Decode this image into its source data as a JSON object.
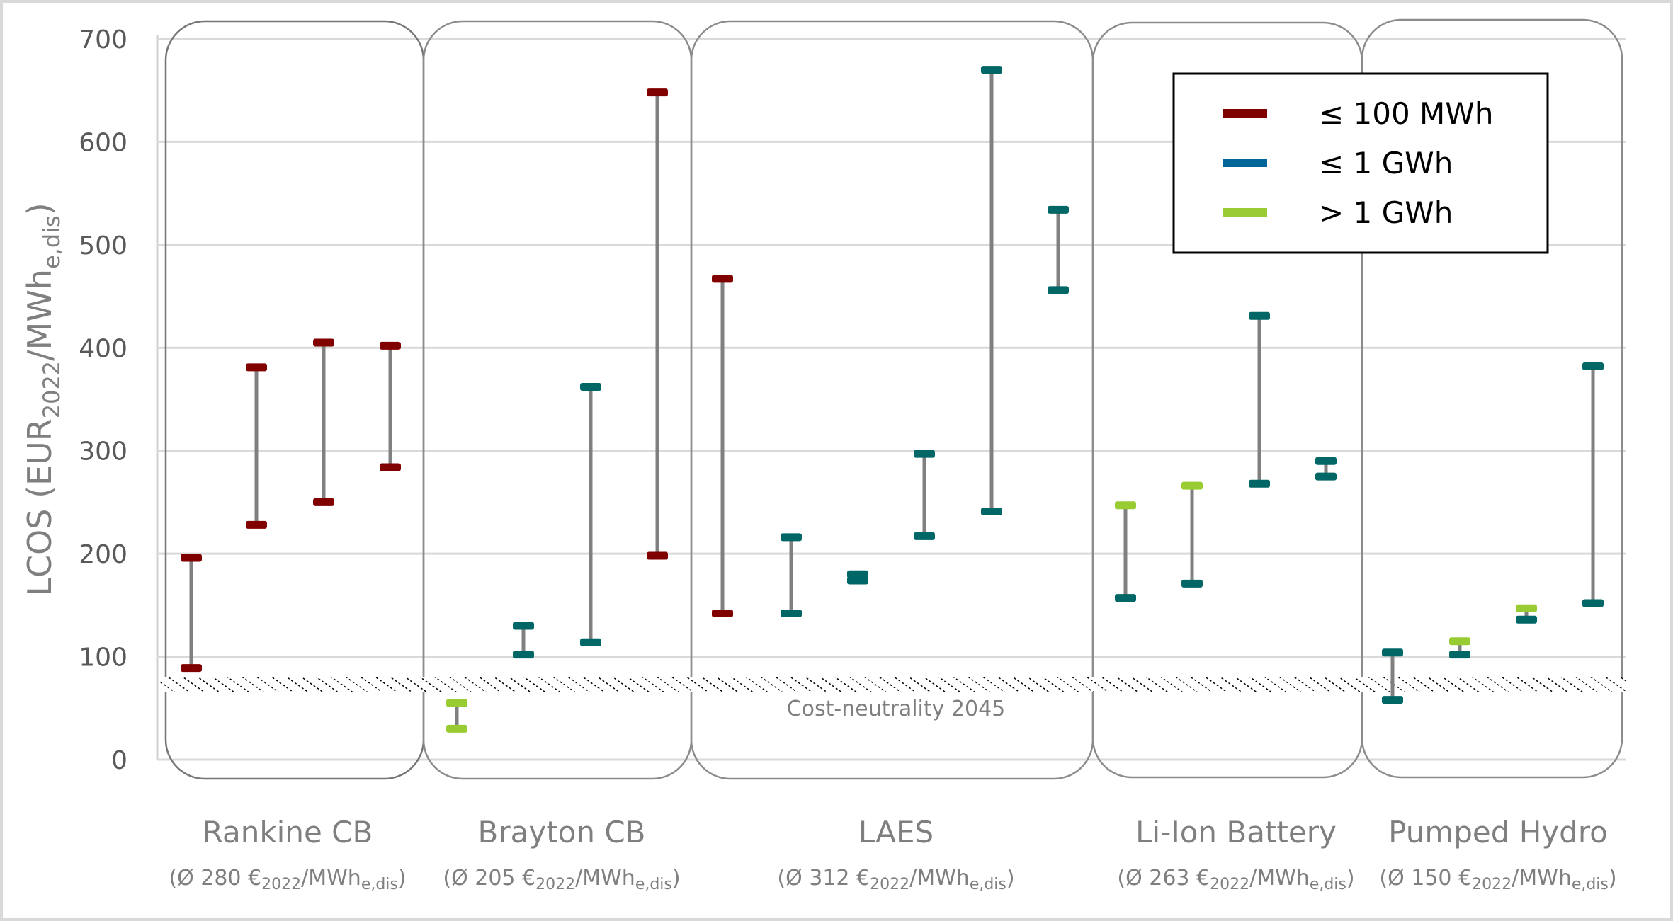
{
  "chart_data": {
    "type": "range",
    "title": "",
    "ylabel": "LCOS (EUR2022/MWhe,dis)",
    "ylabel_parts": {
      "main": "LCOS (EUR",
      "sub1": "2022",
      "mid": "/MWh",
      "sub2": "e,dis",
      "end": ")"
    },
    "ylim": [
      0,
      700
    ],
    "yticks": [
      0,
      100,
      200,
      300,
      400,
      500,
      600,
      700
    ],
    "grid": true,
    "legend_position": "top-right",
    "legend": [
      {
        "key": "small",
        "label": "≤ 100 MWh",
        "color": "#800000"
      },
      {
        "key": "medium",
        "label": "≤ 1 GWh",
        "color": "#006699"
      },
      {
        "key": "large",
        "label": "> 1 GWh",
        "color": "#99CC33"
      }
    ],
    "marker_colors": {
      "small": "#800000",
      "medium": "#006666",
      "large": "#99CC33"
    },
    "reference_band": {
      "label": "Cost-neutrality 2045",
      "low": 66,
      "high": 80
    },
    "groups": [
      {
        "name": "Rankine CB",
        "avg_label": {
          "prefix": "(Ø 280 €",
          "sub1": "2022",
          "mid": "/MWh",
          "sub2": "e,dis",
          "end": ")"
        },
        "ranges": [
          {
            "high": 196,
            "low": 89,
            "high_class": "small",
            "low_class": "small"
          },
          {
            "high": 381,
            "low": 228,
            "high_class": "small",
            "low_class": "small"
          },
          {
            "high": 405,
            "low": 250,
            "high_class": "small",
            "low_class": "small"
          },
          {
            "high": 402,
            "low": 284,
            "high_class": "small",
            "low_class": "small"
          }
        ]
      },
      {
        "name": "Brayton CB",
        "avg_label": {
          "prefix": "(Ø 205 €",
          "sub1": "2022",
          "mid": "/MWh",
          "sub2": "e,dis",
          "end": ")"
        },
        "ranges": [
          {
            "high": 55,
            "low": 30,
            "high_class": "large",
            "low_class": "large"
          },
          {
            "high": 130,
            "low": 102,
            "high_class": "medium",
            "low_class": "medium"
          },
          {
            "high": 362,
            "low": 114,
            "high_class": "medium",
            "low_class": "medium"
          },
          {
            "high": 648,
            "low": 198,
            "high_class": "small",
            "low_class": "small"
          }
        ]
      },
      {
        "name": "LAES",
        "avg_label": {
          "prefix": "(Ø 312 €",
          "sub1": "2022",
          "mid": "/MWh",
          "sub2": "e,dis",
          "end": ")"
        },
        "ranges": [
          {
            "high": 467,
            "low": 142,
            "high_class": "small",
            "low_class": "small"
          },
          {
            "high": 216,
            "low": 142,
            "high_class": "medium",
            "low_class": "medium"
          },
          {
            "high": 180,
            "low": 174,
            "high_class": "medium",
            "low_class": "medium"
          },
          {
            "high": 297,
            "low": 217,
            "high_class": "medium",
            "low_class": "medium"
          },
          {
            "high": 670,
            "low": 241,
            "high_class": "medium",
            "low_class": "medium"
          },
          {
            "high": 534,
            "low": 456,
            "high_class": "medium",
            "low_class": "medium"
          }
        ]
      },
      {
        "name": "Li-Ion Battery",
        "avg_label": {
          "prefix": "(Ø 263 €",
          "sub1": "2022",
          "mid": "/MWh",
          "sub2": "e,dis",
          "end": ")"
        },
        "ranges": [
          {
            "high": 247,
            "low": 157,
            "high_class": "large",
            "low_class": "medium"
          },
          {
            "high": 266,
            "low": 171,
            "high_class": "large",
            "low_class": "medium"
          },
          {
            "high": 431,
            "low": 268,
            "high_class": "medium",
            "low_class": "medium"
          },
          {
            "high": 290,
            "low": 275,
            "high_class": "medium",
            "low_class": "medium"
          }
        ]
      },
      {
        "name": "Pumped Hydro",
        "avg_label": {
          "prefix": "(Ø 150 €",
          "sub1": "2022",
          "mid": "/MWh",
          "sub2": "e,dis",
          "end": ")"
        },
        "ranges": [
          {
            "high": 104,
            "low": 58,
            "high_class": "medium",
            "low_class": "medium"
          },
          {
            "high": 115,
            "low": 102,
            "high_class": "large",
            "low_class": "medium"
          },
          {
            "high": 147,
            "low": 136,
            "high_class": "large",
            "low_class": "medium"
          },
          {
            "high": 382,
            "low": 152,
            "high_class": "medium",
            "low_class": "medium"
          }
        ]
      }
    ]
  }
}
